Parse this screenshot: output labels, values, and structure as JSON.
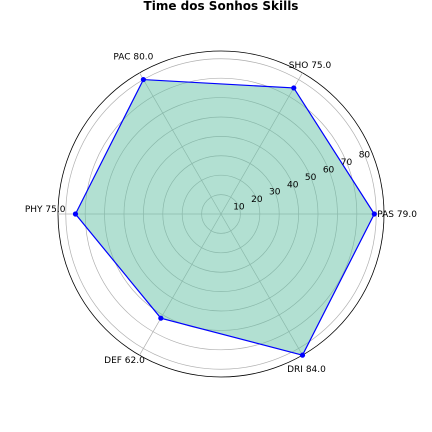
{
  "chart_data": {
    "type": "radar",
    "title": "Time dos Sonhos Skills",
    "categories": [
      "PAS",
      "SHO",
      "PAC",
      "PHY",
      "DEF",
      "DRI"
    ],
    "values": [
      79.0,
      75.0,
      80.0,
      75.0,
      62.0,
      84.0
    ],
    "point_labels": [
      "PAS 79.0",
      "SHO 75.0",
      "PAC 80.0",
      "PHY 75.0",
      "DEF 62.0",
      "DRI 84.0"
    ],
    "r_ticks": [
      "10",
      "20",
      "30",
      "40",
      "50",
      "60",
      "70",
      "80"
    ],
    "r_tick_values": [
      10,
      20,
      30,
      40,
      50,
      60,
      70,
      80
    ],
    "rlim": [
      0,
      84
    ],
    "grid": true,
    "colors": {
      "line": "#0000ff",
      "fill": "#66c2a5",
      "grid": "#b0b0b0",
      "point": "#0000ff"
    }
  }
}
